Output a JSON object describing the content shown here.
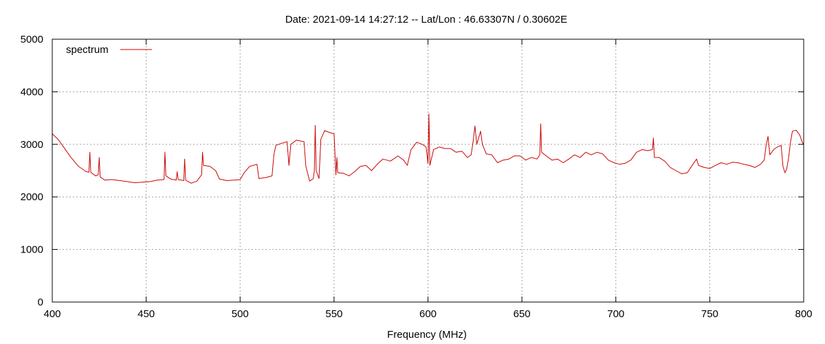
{
  "chart_data": {
    "type": "line",
    "title": "Date: 2021-09-14 14:27:12  --  Lat/Lon : 46.63307N / 0.30602E",
    "xlabel": "Frequency (MHz)",
    "ylabel": "",
    "xlim": [
      400,
      800
    ],
    "ylim": [
      0,
      5000
    ],
    "x_ticks": [
      400,
      450,
      500,
      550,
      600,
      650,
      700,
      750,
      800
    ],
    "y_ticks": [
      0,
      1000,
      2000,
      3000,
      4000,
      5000
    ],
    "grid": true,
    "legend_position": "top-left",
    "series": [
      {
        "name": "spectrum",
        "color": "#cc0000",
        "points": [
          [
            400,
            3200
          ],
          [
            403,
            3100
          ],
          [
            406,
            2950
          ],
          [
            410,
            2750
          ],
          [
            414,
            2580
          ],
          [
            418,
            2480
          ],
          [
            419.5,
            2470
          ],
          [
            420,
            2850
          ],
          [
            420.5,
            2470
          ],
          [
            423,
            2400
          ],
          [
            424.5,
            2420
          ],
          [
            425,
            2750
          ],
          [
            425.5,
            2380
          ],
          [
            428,
            2320
          ],
          [
            432,
            2330
          ],
          [
            436,
            2310
          ],
          [
            440,
            2290
          ],
          [
            444,
            2270
          ],
          [
            448,
            2280
          ],
          [
            452,
            2290
          ],
          [
            456,
            2320
          ],
          [
            459.5,
            2330
          ],
          [
            460,
            2850
          ],
          [
            460.5,
            2400
          ],
          [
            463,
            2340
          ],
          [
            466,
            2320
          ],
          [
            466.5,
            2480
          ],
          [
            467,
            2330
          ],
          [
            470,
            2310
          ],
          [
            470.5,
            2720
          ],
          [
            471,
            2320
          ],
          [
            474,
            2260
          ],
          [
            477,
            2300
          ],
          [
            479.5,
            2420
          ],
          [
            480,
            2850
          ],
          [
            480.5,
            2600
          ],
          [
            484,
            2580
          ],
          [
            487,
            2500
          ],
          [
            489,
            2340
          ],
          [
            493,
            2310
          ],
          [
            497,
            2320
          ],
          [
            500,
            2330
          ],
          [
            502,
            2450
          ],
          [
            505,
            2580
          ],
          [
            509,
            2620
          ],
          [
            510,
            2350
          ],
          [
            514,
            2370
          ],
          [
            517,
            2400
          ],
          [
            518,
            2800
          ],
          [
            519,
            2980
          ],
          [
            522,
            3020
          ],
          [
            525,
            3050
          ],
          [
            526,
            2600
          ],
          [
            527,
            3000
          ],
          [
            530,
            3080
          ],
          [
            534,
            3050
          ],
          [
            535,
            2580
          ],
          [
            537,
            2300
          ],
          [
            539,
            2350
          ],
          [
            539.5,
            2500
          ],
          [
            540,
            3360
          ],
          [
            540.5,
            2500
          ],
          [
            542,
            2350
          ],
          [
            543,
            3100
          ],
          [
            545,
            3260
          ],
          [
            548,
            3220
          ],
          [
            550,
            3200
          ],
          [
            551,
            2420
          ],
          [
            551.5,
            2750
          ],
          [
            552,
            2460
          ],
          [
            555,
            2450
          ],
          [
            558,
            2400
          ],
          [
            561,
            2480
          ],
          [
            564,
            2580
          ],
          [
            567,
            2600
          ],
          [
            570,
            2500
          ],
          [
            573,
            2620
          ],
          [
            576,
            2720
          ],
          [
            580,
            2680
          ],
          [
            584,
            2780
          ],
          [
            587,
            2700
          ],
          [
            589,
            2600
          ],
          [
            591,
            2900
          ],
          [
            594,
            3040
          ],
          [
            597,
            3000
          ],
          [
            599,
            2950
          ],
          [
            600,
            2640
          ],
          [
            600.5,
            3580
          ],
          [
            601,
            2600
          ],
          [
            603,
            2900
          ],
          [
            606,
            2950
          ],
          [
            609,
            2920
          ],
          [
            612,
            2920
          ],
          [
            615,
            2850
          ],
          [
            618,
            2870
          ],
          [
            621,
            2750
          ],
          [
            623,
            2800
          ],
          [
            624,
            3050
          ],
          [
            625,
            3350
          ],
          [
            626,
            3000
          ],
          [
            628,
            3250
          ],
          [
            629,
            3000
          ],
          [
            631,
            2820
          ],
          [
            634,
            2800
          ],
          [
            637,
            2650
          ],
          [
            640,
            2700
          ],
          [
            643,
            2720
          ],
          [
            646,
            2780
          ],
          [
            649,
            2780
          ],
          [
            652,
            2700
          ],
          [
            655,
            2750
          ],
          [
            658,
            2720
          ],
          [
            659.5,
            2800
          ],
          [
            660,
            3390
          ],
          [
            660.5,
            2850
          ],
          [
            663,
            2780
          ],
          [
            666,
            2700
          ],
          [
            669,
            2720
          ],
          [
            672,
            2650
          ],
          [
            675,
            2720
          ],
          [
            678,
            2800
          ],
          [
            681,
            2750
          ],
          [
            684,
            2850
          ],
          [
            687,
            2800
          ],
          [
            690,
            2850
          ],
          [
            693,
            2820
          ],
          [
            696,
            2700
          ],
          [
            699,
            2650
          ],
          [
            702,
            2620
          ],
          [
            705,
            2640
          ],
          [
            708,
            2700
          ],
          [
            711,
            2850
          ],
          [
            714,
            2900
          ],
          [
            717,
            2880
          ],
          [
            719.5,
            2900
          ],
          [
            720,
            3120
          ],
          [
            720.5,
            2750
          ],
          [
            723,
            2750
          ],
          [
            726,
            2680
          ],
          [
            729,
            2560
          ],
          [
            732,
            2500
          ],
          [
            735,
            2440
          ],
          [
            738,
            2460
          ],
          [
            741,
            2620
          ],
          [
            743,
            2720
          ],
          [
            744,
            2600
          ],
          [
            747,
            2560
          ],
          [
            750,
            2540
          ],
          [
            753,
            2600
          ],
          [
            756,
            2650
          ],
          [
            759,
            2620
          ],
          [
            762,
            2660
          ],
          [
            765,
            2650
          ],
          [
            768,
            2620
          ],
          [
            771,
            2600
          ],
          [
            774,
            2560
          ],
          [
            777,
            2620
          ],
          [
            779,
            2700
          ],
          [
            780,
            2980
          ],
          [
            781,
            3150
          ],
          [
            782,
            2800
          ],
          [
            784,
            2900
          ],
          [
            786,
            2950
          ],
          [
            788,
            2980
          ],
          [
            789,
            2580
          ],
          [
            790,
            2460
          ],
          [
            791,
            2540
          ],
          [
            792,
            2750
          ],
          [
            793,
            3050
          ],
          [
            794,
            3250
          ],
          [
            796,
            3270
          ],
          [
            798,
            3170
          ],
          [
            799,
            3060
          ],
          [
            800,
            2990
          ]
        ]
      }
    ]
  }
}
